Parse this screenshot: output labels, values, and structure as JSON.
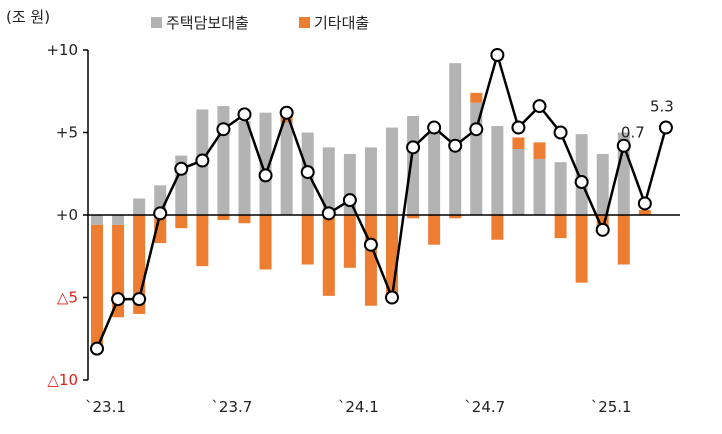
{
  "chart_data": {
    "type": "bar",
    "unit": "(조 원)",
    "colors": {
      "housing": "#b3b3b3",
      "other": "#ed7d31",
      "total_line": "#000000",
      "axis": "#000000",
      "negative_tick": "#e0201b"
    },
    "categories": [
      "2023-01",
      "2023-02",
      "2023-03",
      "2023-04",
      "2023-05",
      "2023-06",
      "2023-07",
      "2023-08",
      "2023-09",
      "2023-10",
      "2023-11",
      "2023-12",
      "2024-01",
      "2024-02",
      "2024-03",
      "2024-04",
      "2024-05",
      "2024-06",
      "2024-07",
      "2024-08",
      "2024-09",
      "2024-10",
      "2024-11",
      "2024-12",
      "2025-01",
      "2025-02",
      "2025-03",
      "2025-04"
    ],
    "x_tick_labels": [
      {
        "index": 0,
        "label": "`23.1"
      },
      {
        "index": 6,
        "label": "`23.7"
      },
      {
        "index": 12,
        "label": "`24.1"
      },
      {
        "index": 18,
        "label": "`24.7"
      },
      {
        "index": 24,
        "label": "`25.1"
      }
    ],
    "y_ticks": [
      {
        "value": 10,
        "label": "+10",
        "negative": false
      },
      {
        "value": 5,
        "label": "+5",
        "negative": false
      },
      {
        "value": 0,
        "label": "+0",
        "negative": false
      },
      {
        "value": -5,
        "label": "△5",
        "negative": true
      },
      {
        "value": -10,
        "label": "△10",
        "negative": true
      }
    ],
    "ylim": [
      -10,
      10
    ],
    "series": [
      {
        "key": "housing",
        "name": "주택담보대출",
        "type": "bar",
        "values": [
          -0.6,
          -0.6,
          1.0,
          1.8,
          3.6,
          6.4,
          6.6,
          5.7,
          6.2,
          5.6,
          5.0,
          4.1,
          3.7,
          4.1,
          5.3,
          6.0,
          5.4,
          9.2,
          6.8,
          5.4,
          4.0,
          3.4,
          3.2,
          4.9,
          3.7,
          5.0,
          0,
          0
        ]
      },
      {
        "key": "other",
        "name": "기타대출",
        "type": "bar",
        "values": [
          -7.4,
          -5.6,
          -6.0,
          -1.7,
          -0.8,
          -3.1,
          -0.3,
          -0.5,
          -3.3,
          0.6,
          -3.0,
          -4.9,
          -3.2,
          -5.5,
          -4.9,
          -0.2,
          -1.8,
          -0.2,
          0.6,
          -1.5,
          0.7,
          1.0,
          -1.4,
          -4.1,
          -0.7,
          -3.0,
          0.3,
          0
        ]
      },
      {
        "key": "total",
        "name": "",
        "type": "line",
        "values": [
          -8.1,
          -5.1,
          -5.1,
          0.1,
          2.8,
          3.3,
          5.2,
          6.1,
          2.4,
          6.2,
          2.6,
          0.1,
          0.9,
          -1.8,
          -5.0,
          4.1,
          5.3,
          4.2,
          5.2,
          9.7,
          5.3,
          6.6,
          5.0,
          2.0,
          -0.9,
          4.2,
          0.7,
          5.3
        ]
      }
    ],
    "data_labels": [
      {
        "index": 26,
        "text": "0.7"
      },
      {
        "index": 27,
        "text": "5.3"
      }
    ]
  }
}
